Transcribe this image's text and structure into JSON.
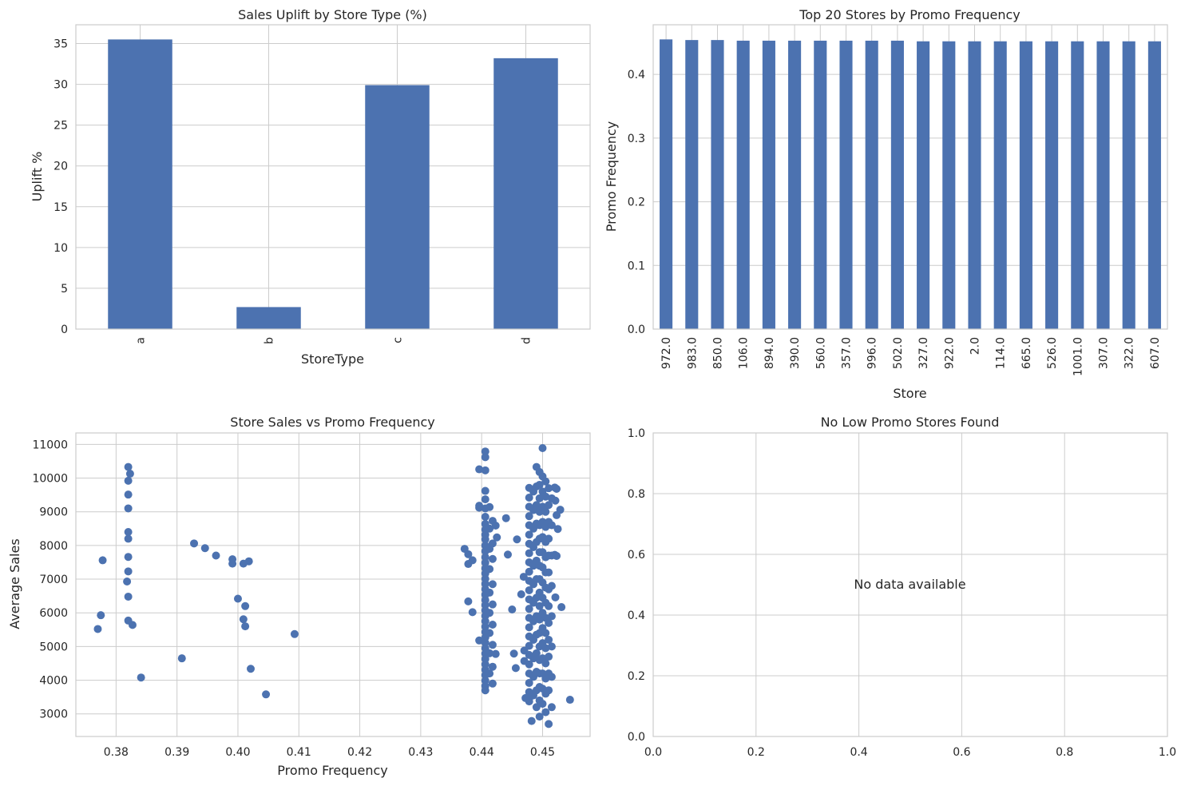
{
  "colors": {
    "bar": "#4c72b0",
    "point": "#4c72b0",
    "grid": "#cccccc",
    "frame": "#cccccc",
    "text": "#262626"
  },
  "chart_data": [
    {
      "type": "bar",
      "title": "Sales Uplift by Store Type (%)",
      "xlabel": "StoreType",
      "ylabel": "Uplift %",
      "categories": [
        "a",
        "b",
        "c",
        "d"
      ],
      "values": [
        35.5,
        2.7,
        29.9,
        33.2
      ],
      "ylim": [
        0,
        37.3
      ],
      "yticks": [
        0,
        5,
        10,
        15,
        20,
        25,
        30,
        35
      ],
      "ytick_labels": [
        "0",
        "5",
        "10",
        "15",
        "20",
        "25",
        "30",
        "35"
      ],
      "grid": true
    },
    {
      "type": "bar",
      "title": "Top 20 Stores by Promo Frequency",
      "xlabel": "Store",
      "ylabel": "Promo Frequency",
      "categories": [
        "972.0",
        "983.0",
        "850.0",
        "106.0",
        "894.0",
        "390.0",
        "560.0",
        "357.0",
        "996.0",
        "502.0",
        "327.0",
        "922.0",
        "2.0",
        "114.0",
        "665.0",
        "526.0",
        "1001.0",
        "307.0",
        "322.0",
        "607.0"
      ],
      "values": [
        0.455,
        0.454,
        0.454,
        0.453,
        0.453,
        0.453,
        0.453,
        0.453,
        0.453,
        0.453,
        0.452,
        0.452,
        0.452,
        0.452,
        0.452,
        0.452,
        0.452,
        0.452,
        0.452,
        0.452
      ],
      "ylim": [
        0,
        0.478
      ],
      "yticks": [
        0,
        0.1,
        0.2,
        0.3,
        0.4
      ],
      "ytick_labels": [
        "0.0",
        "0.1",
        "0.2",
        "0.3",
        "0.4"
      ],
      "grid": true
    },
    {
      "type": "scatter",
      "title": "Store Sales vs Promo Frequency",
      "xlabel": "Promo Frequency",
      "ylabel": "Average Sales",
      "xlim": [
        0.3734,
        0.4578
      ],
      "ylim": [
        2330,
        11340
      ],
      "xticks": [
        0.38,
        0.39,
        0.4,
        0.41,
        0.42,
        0.43,
        0.44,
        0.45
      ],
      "xtick_labels": [
        "0.38",
        "0.39",
        "0.40",
        "0.41",
        "0.42",
        "0.43",
        "0.44",
        "0.45"
      ],
      "yticks": [
        3000,
        4000,
        5000,
        6000,
        7000,
        8000,
        9000,
        10000,
        11000
      ],
      "ytick_labels": [
        "3000",
        "4000",
        "5000",
        "6000",
        "7000",
        "8000",
        "9000",
        "10000",
        "11000"
      ],
      "grid": true,
      "points": [
        [
          0.377,
          5520
        ],
        [
          0.3775,
          5930
        ],
        [
          0.3778,
          7560
        ],
        [
          0.382,
          10330
        ],
        [
          0.3823,
          10130
        ],
        [
          0.382,
          9920
        ],
        [
          0.382,
          9510
        ],
        [
          0.382,
          9100
        ],
        [
          0.382,
          8400
        ],
        [
          0.382,
          8200
        ],
        [
          0.382,
          7660
        ],
        [
          0.382,
          7230
        ],
        [
          0.3818,
          6930
        ],
        [
          0.382,
          6480
        ],
        [
          0.382,
          5770
        ],
        [
          0.3827,
          5640
        ],
        [
          0.3841,
          4080
        ],
        [
          0.3908,
          4650
        ],
        [
          0.3928,
          8060
        ],
        [
          0.3946,
          7920
        ],
        [
          0.3964,
          7700
        ],
        [
          0.3991,
          7590
        ],
        [
          0.3991,
          7460
        ],
        [
          0.4,
          6420
        ],
        [
          0.4009,
          7460
        ],
        [
          0.4018,
          7530
        ],
        [
          0.4012,
          6200
        ],
        [
          0.4009,
          5810
        ],
        [
          0.4012,
          5600
        ],
        [
          0.4021,
          4340
        ],
        [
          0.4046,
          3580
        ],
        [
          0.4093,
          5370
        ],
        [
          0.4372,
          7900
        ],
        [
          0.4378,
          7740
        ],
        [
          0.4378,
          7450
        ],
        [
          0.4385,
          7560
        ],
        [
          0.4378,
          6340
        ],
        [
          0.4385,
          6020
        ],
        [
          0.4396,
          10260
        ],
        [
          0.4396,
          9180
        ],
        [
          0.4396,
          9120
        ],
        [
          0.4396,
          5180
        ],
        [
          0.4406,
          10790
        ],
        [
          0.4406,
          10620
        ],
        [
          0.4406,
          10230
        ],
        [
          0.4406,
          9620
        ],
        [
          0.4406,
          9370
        ],
        [
          0.4406,
          9100
        ],
        [
          0.4406,
          8850
        ],
        [
          0.4406,
          8640
        ],
        [
          0.4406,
          8470
        ],
        [
          0.4406,
          8320
        ],
        [
          0.4406,
          8180
        ],
        [
          0.4406,
          8000
        ],
        [
          0.4406,
          7830
        ],
        [
          0.4406,
          7650
        ],
        [
          0.4406,
          7490
        ],
        [
          0.4406,
          7320
        ],
        [
          0.4406,
          7170
        ],
        [
          0.4406,
          7010
        ],
        [
          0.4406,
          6860
        ],
        [
          0.4406,
          6700
        ],
        [
          0.4406,
          6540
        ],
        [
          0.4406,
          6380
        ],
        [
          0.4406,
          6230
        ],
        [
          0.4406,
          6070
        ],
        [
          0.4406,
          5910
        ],
        [
          0.4406,
          5750
        ],
        [
          0.4406,
          5590
        ],
        [
          0.4406,
          5430
        ],
        [
          0.4406,
          5270
        ],
        [
          0.4406,
          5110
        ],
        [
          0.4406,
          4950
        ],
        [
          0.4406,
          4790
        ],
        [
          0.4406,
          4630
        ],
        [
          0.4406,
          4470
        ],
        [
          0.4406,
          4310
        ],
        [
          0.4406,
          4150
        ],
        [
          0.4406,
          3990
        ],
        [
          0.4406,
          3830
        ],
        [
          0.4406,
          3700
        ],
        [
          0.4413,
          9140
        ],
        [
          0.4413,
          8500
        ],
        [
          0.4413,
          7900
        ],
        [
          0.4413,
          7300
        ],
        [
          0.4413,
          6600
        ],
        [
          0.4413,
          6000
        ],
        [
          0.4413,
          5400
        ],
        [
          0.4413,
          4800
        ],
        [
          0.4413,
          4200
        ],
        [
          0.4418,
          8730
        ],
        [
          0.4418,
          8060
        ],
        [
          0.4418,
          7600
        ],
        [
          0.4418,
          6850
        ],
        [
          0.4418,
          6250
        ],
        [
          0.4418,
          5650
        ],
        [
          0.4418,
          5050
        ],
        [
          0.4418,
          4400
        ],
        [
          0.4418,
          3900
        ],
        [
          0.4423,
          8590
        ],
        [
          0.4423,
          4780
        ],
        [
          0.4425,
          8240
        ],
        [
          0.444,
          8810
        ],
        [
          0.4443,
          7730
        ],
        [
          0.445,
          6100
        ],
        [
          0.4453,
          4790
        ],
        [
          0.4456,
          4360
        ],
        [
          0.4458,
          8180
        ],
        [
          0.4465,
          6550
        ],
        [
          0.4469,
          7070
        ],
        [
          0.447,
          4880
        ],
        [
          0.447,
          4570
        ],
        [
          0.4472,
          3470
        ],
        [
          0.4478,
          3370
        ],
        [
          0.4482,
          2790
        ],
        [
          0.4478,
          9710
        ],
        [
          0.4478,
          9420
        ],
        [
          0.4478,
          9150
        ],
        [
          0.4478,
          8870
        ],
        [
          0.4478,
          8600
        ],
        [
          0.4478,
          8320
        ],
        [
          0.4478,
          8050
        ],
        [
          0.4478,
          7770
        ],
        [
          0.4478,
          7500
        ],
        [
          0.4478,
          7220
        ],
        [
          0.4478,
          6950
        ],
        [
          0.4478,
          6670
        ],
        [
          0.4478,
          6400
        ],
        [
          0.4478,
          6120
        ],
        [
          0.4478,
          5850
        ],
        [
          0.4478,
          5570
        ],
        [
          0.4478,
          5300
        ],
        [
          0.4478,
          5020
        ],
        [
          0.4478,
          4750
        ],
        [
          0.4478,
          4470
        ],
        [
          0.4478,
          4200
        ],
        [
          0.4478,
          3920
        ],
        [
          0.4478,
          3650
        ],
        [
          0.4478,
          3450
        ],
        [
          0.4485,
          9600
        ],
        [
          0.4485,
          9050
        ],
        [
          0.4485,
          8500
        ],
        [
          0.4485,
          7950
        ],
        [
          0.4485,
          7400
        ],
        [
          0.4485,
          6850
        ],
        [
          0.4485,
          6300
        ],
        [
          0.4485,
          5750
        ],
        [
          0.4485,
          5200
        ],
        [
          0.4485,
          4650
        ],
        [
          0.4485,
          4100
        ],
        [
          0.4485,
          3550
        ],
        [
          0.449,
          10330
        ],
        [
          0.449,
          9750
        ],
        [
          0.449,
          9200
        ],
        [
          0.449,
          8650
        ],
        [
          0.449,
          8100
        ],
        [
          0.449,
          7550
        ],
        [
          0.449,
          7000
        ],
        [
          0.449,
          6450
        ],
        [
          0.449,
          5900
        ],
        [
          0.449,
          5350
        ],
        [
          0.449,
          4800
        ],
        [
          0.449,
          4250
        ],
        [
          0.449,
          3700
        ],
        [
          0.449,
          3200
        ],
        [
          0.4495,
          10180
        ],
        [
          0.4495,
          9800
        ],
        [
          0.4495,
          9400
        ],
        [
          0.4495,
          9000
        ],
        [
          0.4495,
          8600
        ],
        [
          0.4495,
          8200
        ],
        [
          0.4495,
          7800
        ],
        [
          0.4495,
          7400
        ],
        [
          0.4495,
          7000
        ],
        [
          0.4495,
          6600
        ],
        [
          0.4495,
          6200
        ],
        [
          0.4495,
          5800
        ],
        [
          0.4495,
          5400
        ],
        [
          0.4495,
          5000
        ],
        [
          0.4495,
          4600
        ],
        [
          0.4495,
          4200
        ],
        [
          0.4495,
          3800
        ],
        [
          0.4495,
          3400
        ],
        [
          0.4495,
          2920
        ],
        [
          0.45,
          10890
        ],
        [
          0.45,
          10050
        ],
        [
          0.45,
          9600
        ],
        [
          0.45,
          9150
        ],
        [
          0.45,
          8700
        ],
        [
          0.45,
          8250
        ],
        [
          0.45,
          7800
        ],
        [
          0.45,
          7350
        ],
        [
          0.45,
          6900
        ],
        [
          0.45,
          6450
        ],
        [
          0.45,
          6000
        ],
        [
          0.45,
          5550
        ],
        [
          0.45,
          5100
        ],
        [
          0.45,
          4650
        ],
        [
          0.45,
          4200
        ],
        [
          0.45,
          3750
        ],
        [
          0.45,
          3300
        ],
        [
          0.4505,
          9900
        ],
        [
          0.4505,
          9450
        ],
        [
          0.4505,
          9000
        ],
        [
          0.4505,
          8550
        ],
        [
          0.4505,
          8100
        ],
        [
          0.4505,
          7650
        ],
        [
          0.4505,
          7200
        ],
        [
          0.4505,
          6750
        ],
        [
          0.4505,
          6300
        ],
        [
          0.4505,
          5850
        ],
        [
          0.4505,
          5400
        ],
        [
          0.4505,
          4950
        ],
        [
          0.4505,
          4500
        ],
        [
          0.4505,
          4050
        ],
        [
          0.4505,
          3600
        ],
        [
          0.4505,
          3050
        ],
        [
          0.451,
          9700
        ],
        [
          0.451,
          9200
        ],
        [
          0.451,
          8700
        ],
        [
          0.451,
          8200
        ],
        [
          0.451,
          7700
        ],
        [
          0.451,
          7200
        ],
        [
          0.451,
          6700
        ],
        [
          0.451,
          6200
        ],
        [
          0.451,
          5700
        ],
        [
          0.451,
          5200
        ],
        [
          0.451,
          4700
        ],
        [
          0.451,
          4200
        ],
        [
          0.451,
          3700
        ],
        [
          0.451,
          2700
        ],
        [
          0.4515,
          9400
        ],
        [
          0.4515,
          8600
        ],
        [
          0.4515,
          7700
        ],
        [
          0.4515,
          6800
        ],
        [
          0.4515,
          5900
        ],
        [
          0.4515,
          5000
        ],
        [
          0.4515,
          4100
        ],
        [
          0.4515,
          3200
        ],
        [
          0.452,
          9720
        ],
        [
          0.4523,
          9680
        ],
        [
          0.4521,
          9330
        ],
        [
          0.4523,
          8900
        ],
        [
          0.452,
          7720
        ],
        [
          0.4523,
          7690
        ],
        [
          0.4521,
          6460
        ],
        [
          0.4525,
          8490
        ],
        [
          0.4529,
          9060
        ],
        [
          0.4531,
          6170
        ],
        [
          0.4545,
          3420
        ]
      ]
    },
    {
      "type": "table",
      "title": "No Low Promo Stores Found",
      "message": "No data available",
      "xlim": [
        0,
        1
      ],
      "ylim": [
        0,
        1
      ],
      "xticks": [
        0,
        0.2,
        0.4,
        0.6,
        0.8,
        1.0
      ],
      "xtick_labels": [
        "0.0",
        "0.2",
        "0.4",
        "0.6",
        "0.8",
        "1.0"
      ],
      "yticks": [
        0,
        0.2,
        0.4,
        0.6,
        0.8,
        1.0
      ],
      "ytick_labels": [
        "0.0",
        "0.2",
        "0.4",
        "0.6",
        "0.8",
        "1.0"
      ],
      "grid": true
    }
  ]
}
